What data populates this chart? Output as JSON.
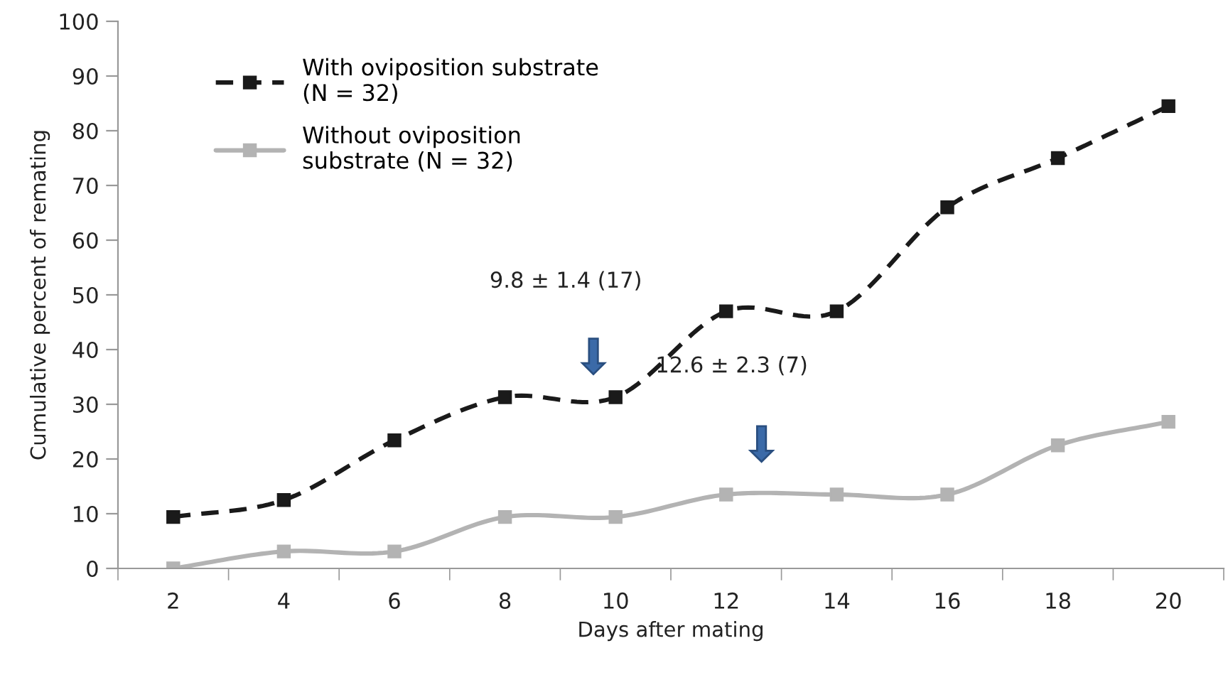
{
  "chart_data": {
    "type": "line",
    "xlabel": "Days after mating",
    "ylabel": "Cumulative percent of remating",
    "x": [
      2,
      4,
      6,
      8,
      10,
      12,
      14,
      16,
      18,
      20
    ],
    "xlim": [
      1,
      21
    ],
    "xticks": [
      {
        "value": 1,
        "label": null
      },
      2,
      {
        "value": 3,
        "label": null
      },
      4,
      {
        "value": 5,
        "label": null
      },
      6,
      {
        "value": 7,
        "label": null
      },
      8,
      {
        "value": 9,
        "label": null
      },
      10,
      {
        "value": 11,
        "label": null
      },
      12,
      {
        "value": 13,
        "label": null
      },
      14,
      {
        "value": 15,
        "label": null
      },
      16,
      {
        "value": 17,
        "label": null
      },
      18,
      {
        "value": 19,
        "label": null
      },
      20,
      {
        "value": 21,
        "label": null
      }
    ],
    "ylim": [
      0,
      100
    ],
    "yticks": [
      0,
      10,
      20,
      30,
      40,
      50,
      60,
      70,
      80,
      90,
      100
    ],
    "series": [
      {
        "name": "With oviposition substrate\n(N = 32)",
        "color": "#1a1a1a",
        "line_style": "dashed",
        "values": [
          9.4,
          12.5,
          23.4,
          31.3,
          31.3,
          47,
          47,
          66,
          75,
          84.5
        ]
      },
      {
        "name": "Without oviposition\nsubstrate (N = 32)",
        "color": "#b3b3b3",
        "line_style": "solid",
        "values": [
          0,
          3.1,
          3.1,
          9.4,
          9.4,
          13.5,
          13.5,
          13.5,
          22.5,
          26.8
        ]
      }
    ],
    "marker": "square",
    "grid": false,
    "legend": "top left",
    "annotations": [
      "9.8 ± 1.4 (17)",
      "12.6 ± 2.3 (7)"
    ]
  }
}
